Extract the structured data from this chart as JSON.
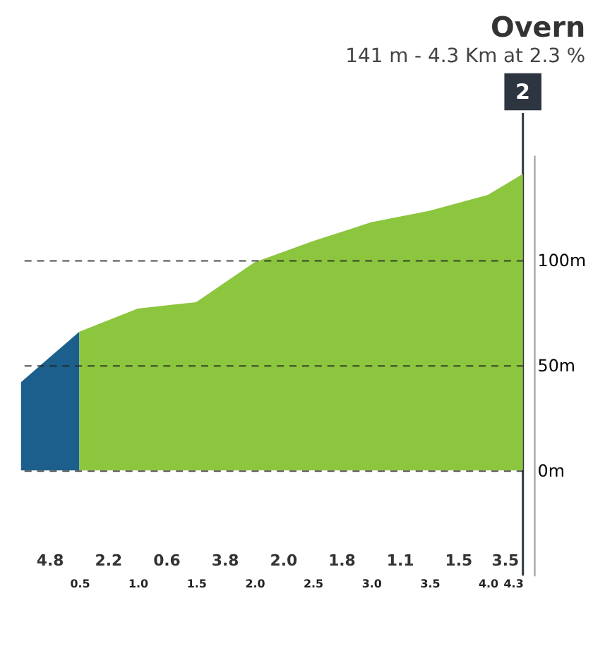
{
  "chart_data": {
    "type": "area",
    "title": "Overn",
    "subtitle": "141 m - 4.3 Km at 2.3 %",
    "series": [
      {
        "color": "#1c5f8c",
        "x": [
          0,
          0.5
        ],
        "values": [
          42,
          66
        ]
      },
      {
        "color": "#8cc63f",
        "x": [
          0.5,
          1.0,
          1.5,
          2.0,
          2.5,
          3.0,
          3.5,
          4.0,
          4.3
        ],
        "values": [
          66,
          77,
          80,
          99,
          109,
          118,
          123.5,
          131,
          141
        ]
      }
    ],
    "xlim": [
      0,
      4.3
    ],
    "xticks": [
      0.5,
      {
        "value": 1,
        "label": "1.0"
      },
      1.5,
      {
        "value": 2,
        "label": "2.0"
      },
      2.5,
      {
        "value": 3,
        "label": "3.0"
      },
      3.5,
      {
        "value": 4,
        "label": "4.0"
      },
      4.3
    ],
    "ylim": [
      -50,
      150
    ],
    "yticks": [
      {
        "value": 0,
        "label": "0m"
      },
      {
        "value": 50,
        "label": "50m"
      },
      {
        "value": 100,
        "label": "100m"
      }
    ],
    "grid": "y",
    "annotations": [
      "4.8",
      "2.2",
      "0.6",
      "3.8",
      "2.0",
      "1.8",
      "1.1",
      "1.5",
      "3.5",
      "2"
    ],
    "ref_lines": [
      {
        "axis": "x",
        "value": 4.3,
        "color": "#2d3540"
      }
    ]
  }
}
